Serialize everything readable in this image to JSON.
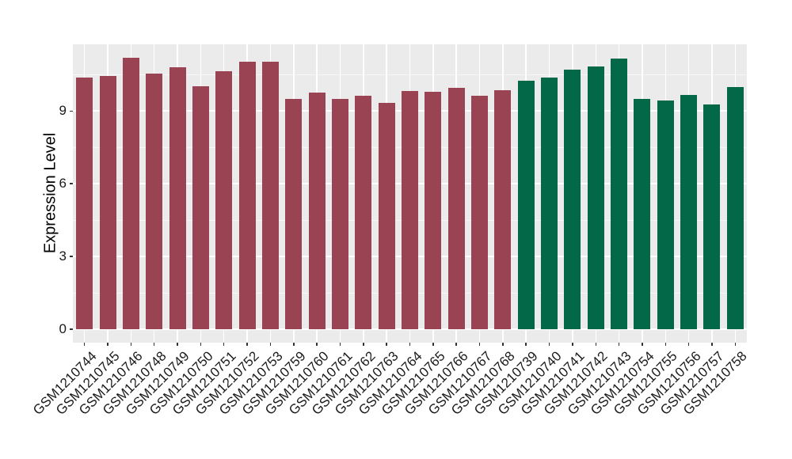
{
  "chart_data": {
    "type": "bar",
    "title": "",
    "ylabel": "Expression Level",
    "xlabel": "",
    "categories": [
      "GSM1210744",
      "GSM1210745",
      "GSM1210746",
      "GSM1210748",
      "GSM1210749",
      "GSM1210750",
      "GSM1210751",
      "GSM1210752",
      "GSM1210753",
      "GSM1210759",
      "GSM1210760",
      "GSM1210761",
      "GSM1210762",
      "GSM1210763",
      "GSM1210764",
      "GSM1210765",
      "GSM1210766",
      "GSM1210767",
      "GSM1210768",
      "GSM1210739",
      "GSM1210740",
      "GSM1210741",
      "GSM1210742",
      "GSM1210743",
      "GSM1210754",
      "GSM1210755",
      "GSM1210756",
      "GSM1210757",
      "GSM1210758"
    ],
    "values": [
      10.37,
      10.44,
      11.18,
      10.55,
      10.79,
      10.03,
      10.63,
      11.03,
      11.02,
      9.51,
      9.77,
      9.49,
      9.63,
      9.32,
      9.81,
      9.79,
      9.95,
      9.63,
      9.87,
      10.25,
      10.37,
      10.69,
      10.83,
      11.16,
      9.51,
      9.43,
      9.67,
      9.27,
      9.98
    ],
    "bar_groups": [
      0,
      0,
      0,
      0,
      0,
      0,
      0,
      0,
      0,
      0,
      0,
      0,
      0,
      0,
      0,
      0,
      0,
      0,
      0,
      1,
      1,
      1,
      1,
      1,
      1,
      1,
      1,
      1,
      1
    ],
    "group_colors": [
      "#9A4453",
      "#026848"
    ],
    "yticks": [
      0,
      3,
      6,
      9
    ],
    "yticks_minor": [
      1.5,
      4.5,
      7.5,
      10.5
    ],
    "ylim": [
      -0.55,
      11.75
    ],
    "grid": "on",
    "legend": "none",
    "panel_bg": "#EBEBEB",
    "gridline_color": "#FFFFFF",
    "axis_text_color": "#1a1a1a"
  }
}
